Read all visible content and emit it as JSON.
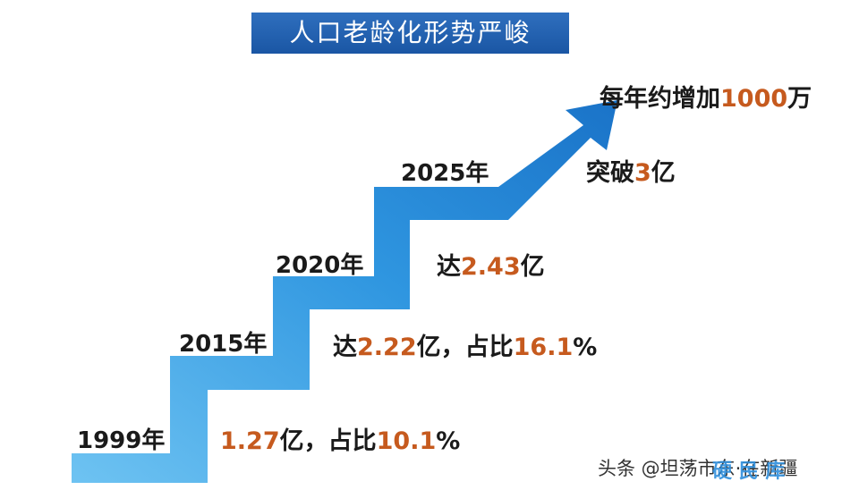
{
  "title": "人口老龄化形势严峻",
  "steps": [
    {
      "year": "1999年",
      "desc_parts": [
        {
          "text": "1.27",
          "hl": true
        },
        {
          "text": "亿，占比",
          "hl": false
        },
        {
          "text": "10.1",
          "hl": true
        },
        {
          "text": "%",
          "hl": false
        }
      ]
    },
    {
      "year": "2015年",
      "desc_parts": [
        {
          "text": "达",
          "hl": false
        },
        {
          "text": "2.22",
          "hl": true
        },
        {
          "text": "亿，占比",
          "hl": false
        },
        {
          "text": "16.1",
          "hl": true
        },
        {
          "text": "%",
          "hl": false
        }
      ]
    },
    {
      "year": "2020年",
      "desc_parts": [
        {
          "text": "达",
          "hl": false
        },
        {
          "text": "2.43",
          "hl": true
        },
        {
          "text": "亿",
          "hl": false
        }
      ]
    },
    {
      "year": "2025年",
      "desc_parts": [
        {
          "text": "突破",
          "hl": false
        },
        {
          "text": "3",
          "hl": true
        },
        {
          "text": "亿",
          "hl": false
        }
      ]
    }
  ],
  "arrow_note_parts": [
    {
      "text": "每年约增加",
      "hl": false
    },
    {
      "text": "1000",
      "hl": true
    },
    {
      "text": "万",
      "hl": false
    }
  ],
  "footer": "头条 @坦荡市东·在新疆",
  "watermark": "硬 民 库",
  "colors": {
    "banner": "#1a56a4",
    "stairs": "#2a8ad6",
    "highlight": "#c65a1e"
  }
}
